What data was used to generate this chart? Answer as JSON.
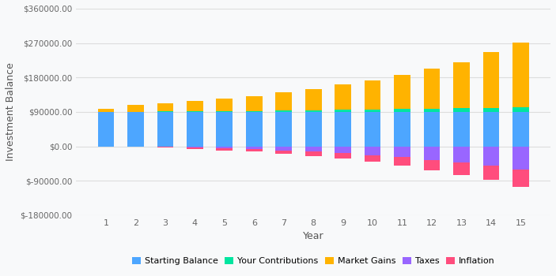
{
  "years": [
    1,
    2,
    3,
    4,
    5,
    6,
    7,
    8,
    9,
    10,
    11,
    12,
    13,
    14,
    15
  ],
  "starting_balance": [
    90000,
    90000,
    90000,
    90000,
    90000,
    90000,
    90000,
    90000,
    90000,
    90000,
    90000,
    90000,
    90000,
    90000,
    90000
  ],
  "contributions": [
    200,
    500,
    1000,
    1500,
    2000,
    3000,
    4000,
    5000,
    6500,
    7000,
    8000,
    9000,
    10000,
    11000,
    12000
  ],
  "market_gains": [
    9000,
    17000,
    22000,
    27000,
    33000,
    39000,
    47000,
    55000,
    65000,
    75000,
    88000,
    105000,
    120000,
    145000,
    170000
  ],
  "inflation": [
    -300,
    -1000,
    -2000,
    -3500,
    -5000,
    -6500,
    -8500,
    -11000,
    -14000,
    -18000,
    -22000,
    -27000,
    -32000,
    -38000,
    -45000
  ],
  "taxes": [
    -200,
    -500,
    -1500,
    -3000,
    -5000,
    -7500,
    -10000,
    -13500,
    -17500,
    -22500,
    -28000,
    -35000,
    -42000,
    -50000,
    -60000
  ],
  "colors": {
    "starting_balance": "#4da6ff",
    "contributions": "#00e5a0",
    "market_gains": "#ffb300",
    "inflation": "#ff4d7d",
    "taxes": "#9966ff"
  },
  "ylabel": "Investment Balance",
  "xlabel": "Year",
  "ylim": [
    -180000,
    360000
  ],
  "yticks": [
    -180000,
    -90000,
    0,
    90000,
    180000,
    270000,
    360000
  ],
  "ytick_labels": [
    "$-180000.00",
    "$-90000.00",
    "$0.00",
    "$90000.00",
    "$180000.00",
    "$270000.00",
    "$360000.00"
  ],
  "background_color": "#f8f9fa",
  "grid_color": "#dddddd",
  "bar_width": 0.55
}
